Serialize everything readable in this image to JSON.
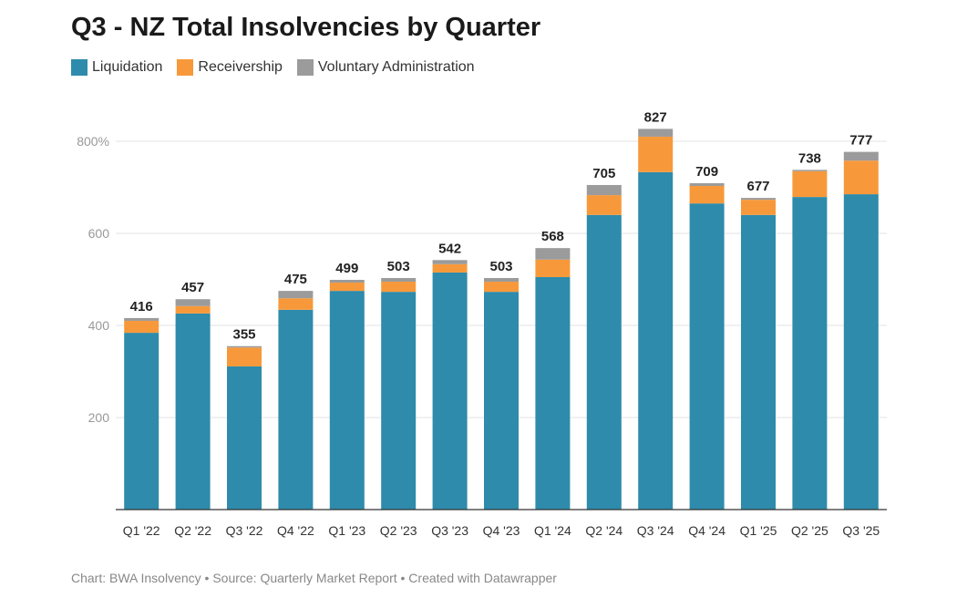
{
  "chart_data": {
    "type": "bar",
    "stacked": true,
    "title": "Q3 - NZ Total Insolvencies by Quarter",
    "categories": [
      "Q1 '22",
      "Q2 '22",
      "Q3 '22",
      "Q4 '22",
      "Q1 '23",
      "Q2 '23",
      "Q3 '23",
      "Q4 '23",
      "Q1 '24",
      "Q2 '24",
      "Q3 '24",
      "Q4 '24",
      "Q1 '25",
      "Q2 '25",
      "Q3 '25"
    ],
    "series": [
      {
        "name": "Liquidation",
        "color": "#2e8bab",
        "values": [
          384,
          426,
          311,
          434,
          475,
          473,
          515,
          473,
          505,
          640,
          733,
          665,
          640,
          679,
          685
        ]
      },
      {
        "name": "Receivership",
        "color": "#f7993a",
        "values": [
          26,
          16,
          41,
          25,
          18,
          22,
          18,
          22,
          38,
          43,
          77,
          38,
          33,
          56,
          73
        ]
      },
      {
        "name": "Voluntary Administration",
        "color": "#9b9b9b",
        "values": [
          6,
          15,
          3,
          16,
          6,
          8,
          9,
          8,
          25,
          22,
          17,
          6,
          4,
          3,
          19
        ]
      }
    ],
    "totals": [
      "416",
      "457",
      "355",
      "475",
      "499",
      "503",
      "542",
      "503",
      "568",
      "705",
      "827",
      "709",
      "677",
      "738",
      "777"
    ],
    "yticks": [
      {
        "v": 200,
        "label": "200"
      },
      {
        "v": 400,
        "label": "400"
      },
      {
        "v": 600,
        "label": "600"
      },
      {
        "v": 800,
        "label": "800%"
      }
    ],
    "ylim": [
      0,
      800
    ],
    "grid": true,
    "legend_position": "top-left",
    "xlabel": "",
    "ylabel": ""
  },
  "footer": "Chart: BWA Insolvency • Source: Quarterly Market Report • Created with Datawrapper"
}
